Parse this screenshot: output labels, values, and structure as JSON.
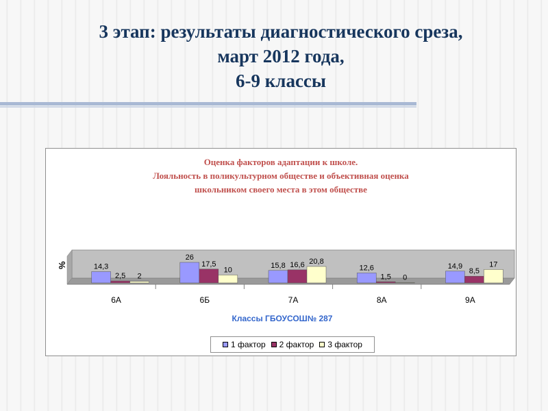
{
  "slide": {
    "title_lines": [
      "3 этап: результаты диагностического среза,",
      "март 2012 года,",
      "6-9 классы"
    ]
  },
  "chart_data": {
    "type": "bar",
    "title_lines": [
      "Оценка факторов адаптации к школе.",
      "Лояльность в поликультурном обществе и объективная оценка",
      "школьником своего места в этом обществе"
    ],
    "xlabel": "Классы ГБОУСОШ№ 287",
    "ylabel": "%",
    "categories": [
      "6А",
      "6Б",
      "7А",
      "8А",
      "9А"
    ],
    "series": [
      {
        "name": "1 фактор",
        "values": [
          14.3,
          26,
          15.8,
          12.6,
          14.9
        ],
        "labels": [
          "14,3",
          "26",
          "15,8",
          "12,6",
          "14,9"
        ],
        "color": "#9999ff"
      },
      {
        "name": "2 фактор",
        "values": [
          2.5,
          17.5,
          16.6,
          1.5,
          8.5
        ],
        "labels": [
          "2,5",
          "17,5",
          "16,6",
          "1,5",
          "8,5"
        ],
        "color": "#993366"
      },
      {
        "name": "3 фактор",
        "values": [
          2,
          10,
          20.8,
          0,
          17
        ],
        "labels": [
          "2",
          "10",
          "20,8",
          "0",
          "17"
        ],
        "color": "#ffffcc"
      }
    ],
    "ylim": [
      0,
      26
    ],
    "legend_position": "bottom",
    "grid": false,
    "plot_background": "#c0c0c0"
  }
}
